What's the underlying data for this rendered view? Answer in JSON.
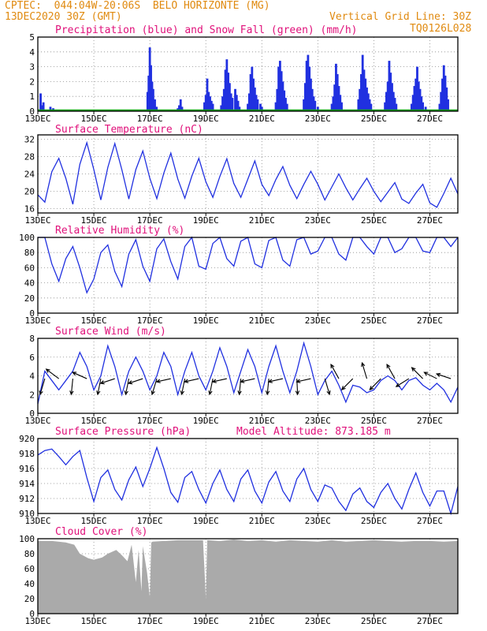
{
  "header": {
    "line1": "CPTEC:  044:04W-20:06S  BELO HORIZONTE (MG)",
    "line2": "13DEC2020 30Z (GMT)",
    "grid_note": "Vertical Grid Line: 30Z",
    "code": "TQ0126L028"
  },
  "colors": {
    "frame": "#000000",
    "grid": "#8a8a8a",
    "title": "#e0107a",
    "header": "#e08a10",
    "line": "#2030e0",
    "precip": "#2030e0",
    "snow": "#10a010",
    "cloud": "#aaaaaa",
    "arrow": "#000000"
  },
  "x_ticks": [
    "13DEC",
    "15DEC",
    "17DEC",
    "19DEC",
    "21DEC",
    "23DEC",
    "25DEC",
    "27DEC"
  ],
  "x_range_days": [
    0,
    15
  ],
  "chart_data": [
    {
      "id": "precip",
      "type": "bar",
      "title": "Precipitation (blue) and Snow Fall (green) (mm/h)",
      "ylim": [
        0,
        5
      ],
      "yticks": [
        0,
        1,
        2,
        3,
        4,
        5
      ],
      "bars": [
        [
          0.1,
          1.2
        ],
        [
          0.14,
          0.4
        ],
        [
          0.2,
          0.6
        ],
        [
          0.45,
          0.3
        ],
        [
          0.55,
          0.2
        ],
        [
          3.92,
          1.3
        ],
        [
          3.96,
          2.4
        ],
        [
          4.0,
          4.3
        ],
        [
          4.04,
          3.1
        ],
        [
          4.08,
          2.0
        ],
        [
          4.12,
          1.5
        ],
        [
          4.18,
          0.8
        ],
        [
          4.24,
          0.3
        ],
        [
          5.0,
          0.2
        ],
        [
          5.05,
          0.4
        ],
        [
          5.1,
          0.8
        ],
        [
          5.15,
          0.3
        ],
        [
          5.95,
          0.6
        ],
        [
          6.0,
          1.1
        ],
        [
          6.05,
          2.2
        ],
        [
          6.1,
          1.3
        ],
        [
          6.15,
          1.0
        ],
        [
          6.2,
          0.7
        ],
        [
          6.25,
          0.5
        ],
        [
          6.55,
          0.4
        ],
        [
          6.6,
          1.0
        ],
        [
          6.65,
          1.5
        ],
        [
          6.7,
          2.8
        ],
        [
          6.75,
          3.5
        ],
        [
          6.8,
          2.6
        ],
        [
          6.85,
          1.9
        ],
        [
          6.9,
          1.2
        ],
        [
          6.95,
          0.9
        ],
        [
          7.05,
          1.5
        ],
        [
          7.1,
          1.1
        ],
        [
          7.15,
          0.7
        ],
        [
          7.2,
          0.3
        ],
        [
          7.5,
          0.5
        ],
        [
          7.55,
          1.2
        ],
        [
          7.6,
          2.5
        ],
        [
          7.65,
          3.0
        ],
        [
          7.7,
          2.2
        ],
        [
          7.75,
          1.6
        ],
        [
          7.8,
          1.1
        ],
        [
          7.85,
          0.8
        ],
        [
          7.95,
          0.5
        ],
        [
          8.0,
          0.3
        ],
        [
          8.5,
          0.6
        ],
        [
          8.55,
          1.5
        ],
        [
          8.6,
          3.0
        ],
        [
          8.65,
          3.4
        ],
        [
          8.7,
          2.7
        ],
        [
          8.75,
          2.0
        ],
        [
          8.8,
          1.4
        ],
        [
          8.85,
          0.9
        ],
        [
          8.9,
          0.5
        ],
        [
          9.5,
          0.8
        ],
        [
          9.55,
          1.9
        ],
        [
          9.6,
          3.4
        ],
        [
          9.65,
          3.8
        ],
        [
          9.7,
          3.0
        ],
        [
          9.75,
          2.2
        ],
        [
          9.8,
          1.5
        ],
        [
          9.85,
          1.0
        ],
        [
          9.9,
          0.7
        ],
        [
          10.0,
          0.3
        ],
        [
          10.5,
          0.5
        ],
        [
          10.55,
          1.0
        ],
        [
          10.6,
          1.8
        ],
        [
          10.65,
          3.2
        ],
        [
          10.7,
          2.5
        ],
        [
          10.75,
          1.7
        ],
        [
          10.8,
          1.1
        ],
        [
          10.85,
          0.6
        ],
        [
          11.45,
          0.8
        ],
        [
          11.5,
          1.5
        ],
        [
          11.55,
          2.5
        ],
        [
          11.6,
          3.8
        ],
        [
          11.65,
          2.8
        ],
        [
          11.7,
          2.2
        ],
        [
          11.75,
          1.6
        ],
        [
          11.8,
          1.2
        ],
        [
          11.85,
          0.8
        ],
        [
          11.9,
          0.5
        ],
        [
          12.4,
          0.6
        ],
        [
          12.45,
          1.3
        ],
        [
          12.5,
          2.0
        ],
        [
          12.55,
          3.4
        ],
        [
          12.6,
          2.6
        ],
        [
          12.65,
          1.9
        ],
        [
          12.7,
          1.3
        ],
        [
          12.75,
          0.9
        ],
        [
          12.8,
          0.5
        ],
        [
          13.35,
          0.5
        ],
        [
          13.4,
          1.1
        ],
        [
          13.45,
          1.7
        ],
        [
          13.5,
          2.2
        ],
        [
          13.55,
          3.0
        ],
        [
          13.6,
          2.0
        ],
        [
          13.65,
          1.5
        ],
        [
          13.7,
          1.0
        ],
        [
          13.75,
          0.6
        ],
        [
          13.85,
          0.3
        ],
        [
          14.35,
          0.5
        ],
        [
          14.4,
          1.3
        ],
        [
          14.45,
          2.2
        ],
        [
          14.5,
          3.1
        ],
        [
          14.55,
          2.4
        ],
        [
          14.6,
          1.6
        ],
        [
          14.65,
          0.8
        ]
      ],
      "snow": [
        0,
        0
      ]
    },
    {
      "id": "temp",
      "type": "line",
      "title": "Surface Temperature (nC)",
      "ylim": [
        15,
        33
      ],
      "yticks": [
        16,
        20,
        24,
        28,
        32
      ],
      "x": [
        0,
        0.25,
        0.5,
        0.75,
        1,
        1.25,
        1.5,
        1.75,
        2,
        2.25,
        2.5,
        2.75,
        3,
        3.25,
        3.5,
        3.75,
        4,
        4.25,
        4.5,
        4.75,
        5,
        5.25,
        5.5,
        5.75,
        6,
        6.25,
        6.5,
        6.75,
        7,
        7.25,
        7.5,
        7.75,
        8,
        8.25,
        8.5,
        8.75,
        9,
        9.25,
        9.5,
        9.75,
        10,
        10.25,
        10.5,
        10.75,
        11,
        11.25,
        11.5,
        11.75,
        12,
        12.25,
        12.5,
        12.75,
        13,
        13.25,
        13.5,
        13.75,
        14,
        14.25,
        14.5,
        14.75,
        15
      ],
      "y": [
        19.2,
        17.5,
        24.5,
        27.6,
        23.0,
        17.0,
        26.2,
        31.2,
        25.0,
        18.0,
        25.5,
        31.0,
        25.0,
        18.2,
        25.0,
        29.3,
        23.0,
        18.3,
        24.2,
        28.8,
        22.8,
        18.4,
        23.5,
        27.6,
        22.2,
        18.6,
        23.4,
        27.5,
        21.8,
        18.6,
        22.8,
        27.0,
        21.6,
        19.0,
        22.7,
        25.7,
        21.4,
        18.3,
        21.6,
        24.6,
        21.6,
        18.0,
        21.0,
        24.0,
        20.8,
        18.0,
        20.6,
        23.0,
        20.0,
        17.6,
        19.8,
        22.0,
        18.2,
        17.2,
        19.6,
        21.6,
        17.3,
        16.3,
        19.5,
        23.0,
        19.4
      ]
    },
    {
      "id": "rh",
      "type": "line",
      "title": "Relative Humidity (%)",
      "ylim": [
        0,
        100
      ],
      "yticks": [
        0,
        20,
        40,
        60,
        80,
        100
      ],
      "x": [
        0,
        0.25,
        0.5,
        0.75,
        1,
        1.25,
        1.5,
        1.75,
        2,
        2.25,
        2.5,
        2.75,
        3,
        3.25,
        3.5,
        3.75,
        4,
        4.25,
        4.5,
        4.75,
        5,
        5.25,
        5.5,
        5.75,
        6,
        6.25,
        6.5,
        6.75,
        7,
        7.25,
        7.5,
        7.75,
        8,
        8.25,
        8.5,
        8.75,
        9,
        9.25,
        9.5,
        9.75,
        10,
        10.25,
        10.5,
        10.75,
        11,
        11.25,
        11.5,
        11.75,
        12,
        12.25,
        12.5,
        12.75,
        13,
        13.25,
        13.5,
        13.75,
        14,
        14.25,
        14.5,
        14.75,
        15
      ],
      "y": [
        100,
        100,
        65,
        42,
        72,
        88,
        60,
        27,
        45,
        80,
        90,
        55,
        35,
        78,
        97,
        62,
        42,
        85,
        98,
        68,
        45,
        88,
        100,
        62,
        58,
        92,
        100,
        72,
        62,
        95,
        100,
        65,
        60,
        96,
        100,
        70,
        62,
        97,
        100,
        78,
        82,
        100,
        100,
        78,
        70,
        100,
        100,
        88,
        78,
        100,
        100,
        80,
        85,
        100,
        100,
        82,
        80,
        100,
        100,
        88,
        100
      ]
    },
    {
      "id": "wind",
      "type": "line",
      "title": "Surface Wind (m/s)",
      "ylim": [
        0,
        8
      ],
      "yticks": [
        0,
        2,
        4,
        6,
        8
      ],
      "x": [
        0,
        0.25,
        0.5,
        0.75,
        1,
        1.25,
        1.5,
        1.75,
        2,
        2.25,
        2.5,
        2.75,
        3,
        3.25,
        3.5,
        3.75,
        4,
        4.25,
        4.5,
        4.75,
        5,
        5.25,
        5.5,
        5.75,
        6,
        6.25,
        6.5,
        6.75,
        7,
        7.25,
        7.5,
        7.75,
        8,
        8.25,
        8.5,
        8.75,
        9,
        9.25,
        9.5,
        9.75,
        10,
        10.25,
        10.5,
        10.75,
        11,
        11.25,
        11.5,
        11.75,
        12,
        12.25,
        12.5,
        12.75,
        13,
        13.25,
        13.5,
        13.75,
        14,
        14.25,
        14.5,
        14.75,
        15
      ],
      "y": [
        1.0,
        4.5,
        3.5,
        2.5,
        3.5,
        4.5,
        6.5,
        5.0,
        2.5,
        4.0,
        7.2,
        5.0,
        2.0,
        4.5,
        6.0,
        4.5,
        2.5,
        4.0,
        6.5,
        5.0,
        2.0,
        4.5,
        6.5,
        4.0,
        2.5,
        4.5,
        7.0,
        5.0,
        2.2,
        4.5,
        6.8,
        5.0,
        2.2,
        5.0,
        7.2,
        4.5,
        2.2,
        4.5,
        7.5,
        5.0,
        2.0,
        3.5,
        4.5,
        3.0,
        1.2,
        3.0,
        2.8,
        2.2,
        2.5,
        3.5,
        4.0,
        3.5,
        2.5,
        3.5,
        3.8,
        3.0,
        2.5,
        3.2,
        2.5,
        1.2,
        2.8
      ],
      "arrows": [
        {
          "day": 0.25,
          "u": -0.3,
          "v": -1.0
        },
        {
          "day": 0.75,
          "u": -0.8,
          "v": 0.6
        },
        {
          "day": 1.25,
          "u": -0.1,
          "v": -1.0
        },
        {
          "day": 1.75,
          "u": -0.9,
          "v": 0.4
        },
        {
          "day": 2.25,
          "u": -0.2,
          "v": -1.0
        },
        {
          "day": 2.75,
          "u": -0.9,
          "v": -0.3
        },
        {
          "day": 3.25,
          "u": -0.2,
          "v": -1.0
        },
        {
          "day": 3.75,
          "u": -0.9,
          "v": -0.3
        },
        {
          "day": 4.25,
          "u": -0.3,
          "v": -1.0
        },
        {
          "day": 4.75,
          "u": -0.9,
          "v": -0.2
        },
        {
          "day": 5.25,
          "u": -0.2,
          "v": -1.0
        },
        {
          "day": 5.75,
          "u": -0.9,
          "v": -0.2
        },
        {
          "day": 6.25,
          "u": -0.2,
          "v": -1.0
        },
        {
          "day": 6.75,
          "u": -0.9,
          "v": -0.2
        },
        {
          "day": 7.25,
          "u": -0.1,
          "v": -1.0
        },
        {
          "day": 7.75,
          "u": -0.9,
          "v": -0.2
        },
        {
          "day": 8.25,
          "u": -0.1,
          "v": -1.0
        },
        {
          "day": 8.75,
          "u": -0.9,
          "v": -0.2
        },
        {
          "day": 9.25,
          "u": 0.05,
          "v": -1.0
        },
        {
          "day": 9.75,
          "u": -0.9,
          "v": -0.2
        },
        {
          "day": 10.25,
          "u": 0.3,
          "v": -1.0
        },
        {
          "day": 10.75,
          "u": -0.5,
          "v": 0.9
        },
        {
          "day": 11.25,
          "u": -0.7,
          "v": -0.7
        },
        {
          "day": 11.75,
          "u": -0.3,
          "v": 1.0
        },
        {
          "day": 12.25,
          "u": -0.7,
          "v": -0.7
        },
        {
          "day": 12.75,
          "u": -0.5,
          "v": 0.9
        },
        {
          "day": 13.25,
          "u": -0.8,
          "v": -0.5
        },
        {
          "day": 13.75,
          "u": -0.7,
          "v": 0.7
        },
        {
          "day": 14.25,
          "u": -0.8,
          "v": 0.4
        },
        {
          "day": 14.75,
          "u": -0.9,
          "v": 0.3
        }
      ]
    },
    {
      "id": "pres",
      "type": "line",
      "title": "Surface Pressure (hPa)",
      "extra_label": "Model Altitude: 873.185 m",
      "ylim": [
        910,
        920
      ],
      "yticks": [
        910,
        912,
        914,
        916,
        918,
        920
      ],
      "x": [
        0,
        0.25,
        0.5,
        0.75,
        1,
        1.25,
        1.5,
        1.75,
        2,
        2.25,
        2.5,
        2.75,
        3,
        3.25,
        3.5,
        3.75,
        4,
        4.25,
        4.5,
        4.75,
        5,
        5.25,
        5.5,
        5.75,
        6,
        6.25,
        6.5,
        6.75,
        7,
        7.25,
        7.5,
        7.75,
        8,
        8.25,
        8.5,
        8.75,
        9,
        9.25,
        9.5,
        9.75,
        10,
        10.25,
        10.5,
        10.75,
        11,
        11.25,
        11.5,
        11.75,
        12,
        12.25,
        12.5,
        12.75,
        13,
        13.25,
        13.5,
        13.75,
        14,
        14.25,
        14.5,
        14.75,
        15
      ],
      "y": [
        917.8,
        918.4,
        918.6,
        917.6,
        916.5,
        917.6,
        918.4,
        914.8,
        911.6,
        914.8,
        915.8,
        913.2,
        911.8,
        914.5,
        916.2,
        913.6,
        916.0,
        918.8,
        916.0,
        912.8,
        911.5,
        914.8,
        915.6,
        913.2,
        911.4,
        914.0,
        915.8,
        913.2,
        911.6,
        914.6,
        915.8,
        913.0,
        911.4,
        914.2,
        915.6,
        913.0,
        911.6,
        914.6,
        916.0,
        913.2,
        911.6,
        913.8,
        913.4,
        911.6,
        910.4,
        912.6,
        913.4,
        911.6,
        910.8,
        912.8,
        914.0,
        912.0,
        910.6,
        913.2,
        915.4,
        912.8,
        911.0,
        913.0,
        913.0,
        910.0,
        913.6
      ]
    },
    {
      "id": "cloud",
      "type": "area",
      "title": "Cloud Cover (%)",
      "ylim": [
        0,
        100
      ],
      "yticks": [
        0,
        20,
        40,
        60,
        80,
        100
      ],
      "x": [
        0,
        0.5,
        1,
        1.3,
        1.5,
        1.8,
        2.0,
        2.3,
        2.5,
        2.8,
        3.0,
        3.2,
        3.35,
        3.5,
        3.6,
        3.7,
        3.75,
        3.9,
        4.0,
        4.05,
        4.1,
        4.5,
        5.0,
        5.9,
        6.0,
        6.05,
        6.1,
        6.5,
        7.0,
        7.5,
        8.0,
        8.5,
        9.0,
        9.5,
        10.0,
        10.5,
        11.0,
        11.5,
        12.0,
        12.5,
        13.0,
        13.5,
        14.0,
        14.5,
        15.0
      ],
      "y": [
        97,
        97,
        95,
        92,
        80,
        74,
        72,
        75,
        80,
        85,
        78,
        70,
        92,
        42,
        85,
        30,
        90,
        55,
        22,
        95,
        96,
        97,
        98,
        98,
        20,
        98,
        98,
        97,
        99,
        97,
        98,
        96,
        98,
        97,
        96,
        98,
        96,
        97,
        98,
        97,
        96,
        97,
        97,
        96,
        97
      ]
    }
  ]
}
